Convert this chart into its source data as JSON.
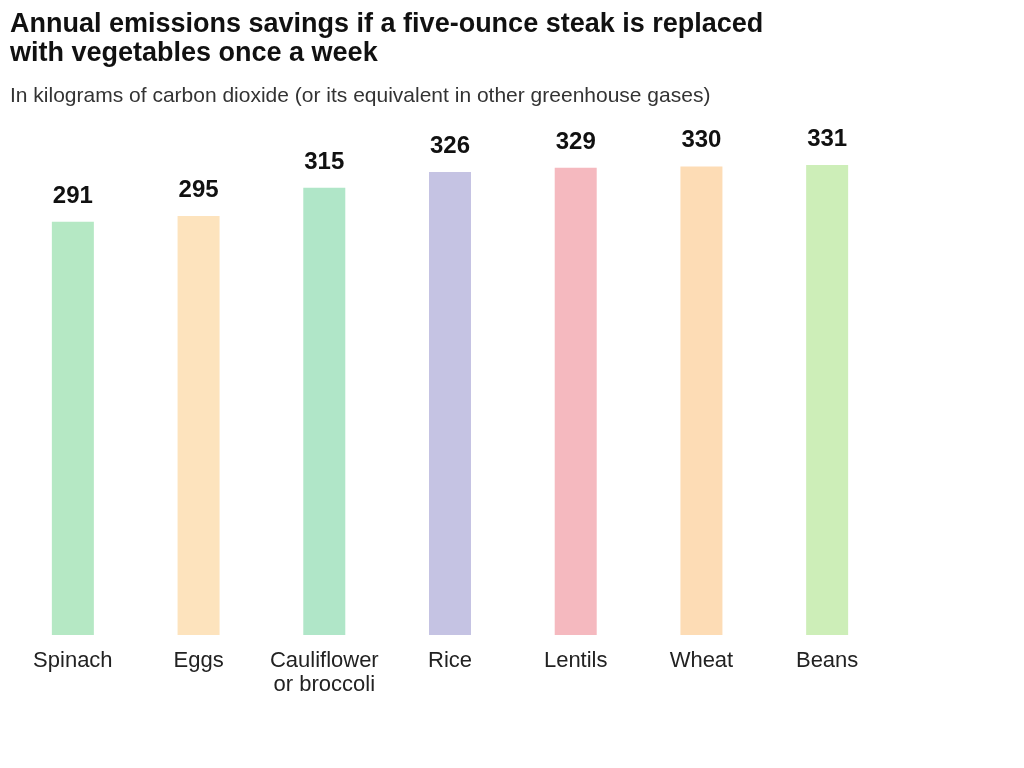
{
  "chart_data": {
    "type": "bar",
    "title": "Annual emissions savings if a five-ounce steak is replaced with vegetables once a week",
    "subtitle": "In kilograms of carbon dioxide (or its equivalent in other greenhouse gases)",
    "categories": [
      "Spinach",
      "Eggs",
      "Cauliflower or broccoli",
      "Rice",
      "Lentils",
      "Wheat",
      "Beans"
    ],
    "values": [
      291,
      295,
      315,
      326,
      329,
      330,
      331
    ],
    "colors": [
      "#b5e8c4",
      "#fde3bd",
      "#b0e6c8",
      "#c5c3e3",
      "#f5b9bf",
      "#fddcb5",
      "#cdeeb8"
    ],
    "data_labels": true,
    "tick_labels": "x"
  }
}
